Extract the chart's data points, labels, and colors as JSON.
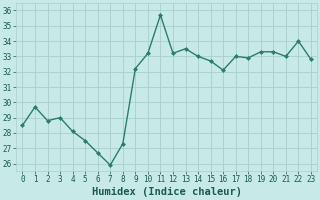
{
  "x": [
    0,
    1,
    2,
    3,
    4,
    5,
    6,
    7,
    8,
    9,
    10,
    11,
    12,
    13,
    14,
    15,
    16,
    17,
    18,
    19,
    20,
    21,
    22,
    23
  ],
  "y": [
    28.5,
    29.7,
    28.8,
    29.0,
    28.1,
    27.5,
    26.7,
    25.9,
    27.3,
    32.2,
    33.2,
    35.7,
    33.2,
    33.5,
    33.0,
    32.7,
    32.1,
    33.0,
    32.9,
    33.3,
    33.3,
    33.0,
    34.0,
    32.8
  ],
  "line_color": "#2a7d6e",
  "marker": "D",
  "marker_size": 2.0,
  "line_width": 1.0,
  "bg_color": "#c8eae6",
  "plot_bg_color": "#c8eae6",
  "xlabel_bg_color": "#2a7d6e",
  "grid_color": "#aacfcb",
  "xlabel": "Humidex (Indice chaleur)",
  "xlim": [
    -0.5,
    23.5
  ],
  "ylim": [
    25.5,
    36.5
  ],
  "yticks": [
    26,
    27,
    28,
    29,
    30,
    31,
    32,
    33,
    34,
    35,
    36
  ],
  "xticks": [
    0,
    1,
    2,
    3,
    4,
    5,
    6,
    7,
    8,
    9,
    10,
    11,
    12,
    13,
    14,
    15,
    16,
    17,
    18,
    19,
    20,
    21,
    22,
    23
  ],
  "tick_labelsize": 5.5,
  "xlabel_fontsize": 7.5,
  "tick_color": "#1a5a50",
  "xlabel_text_color": "#1a5a50"
}
